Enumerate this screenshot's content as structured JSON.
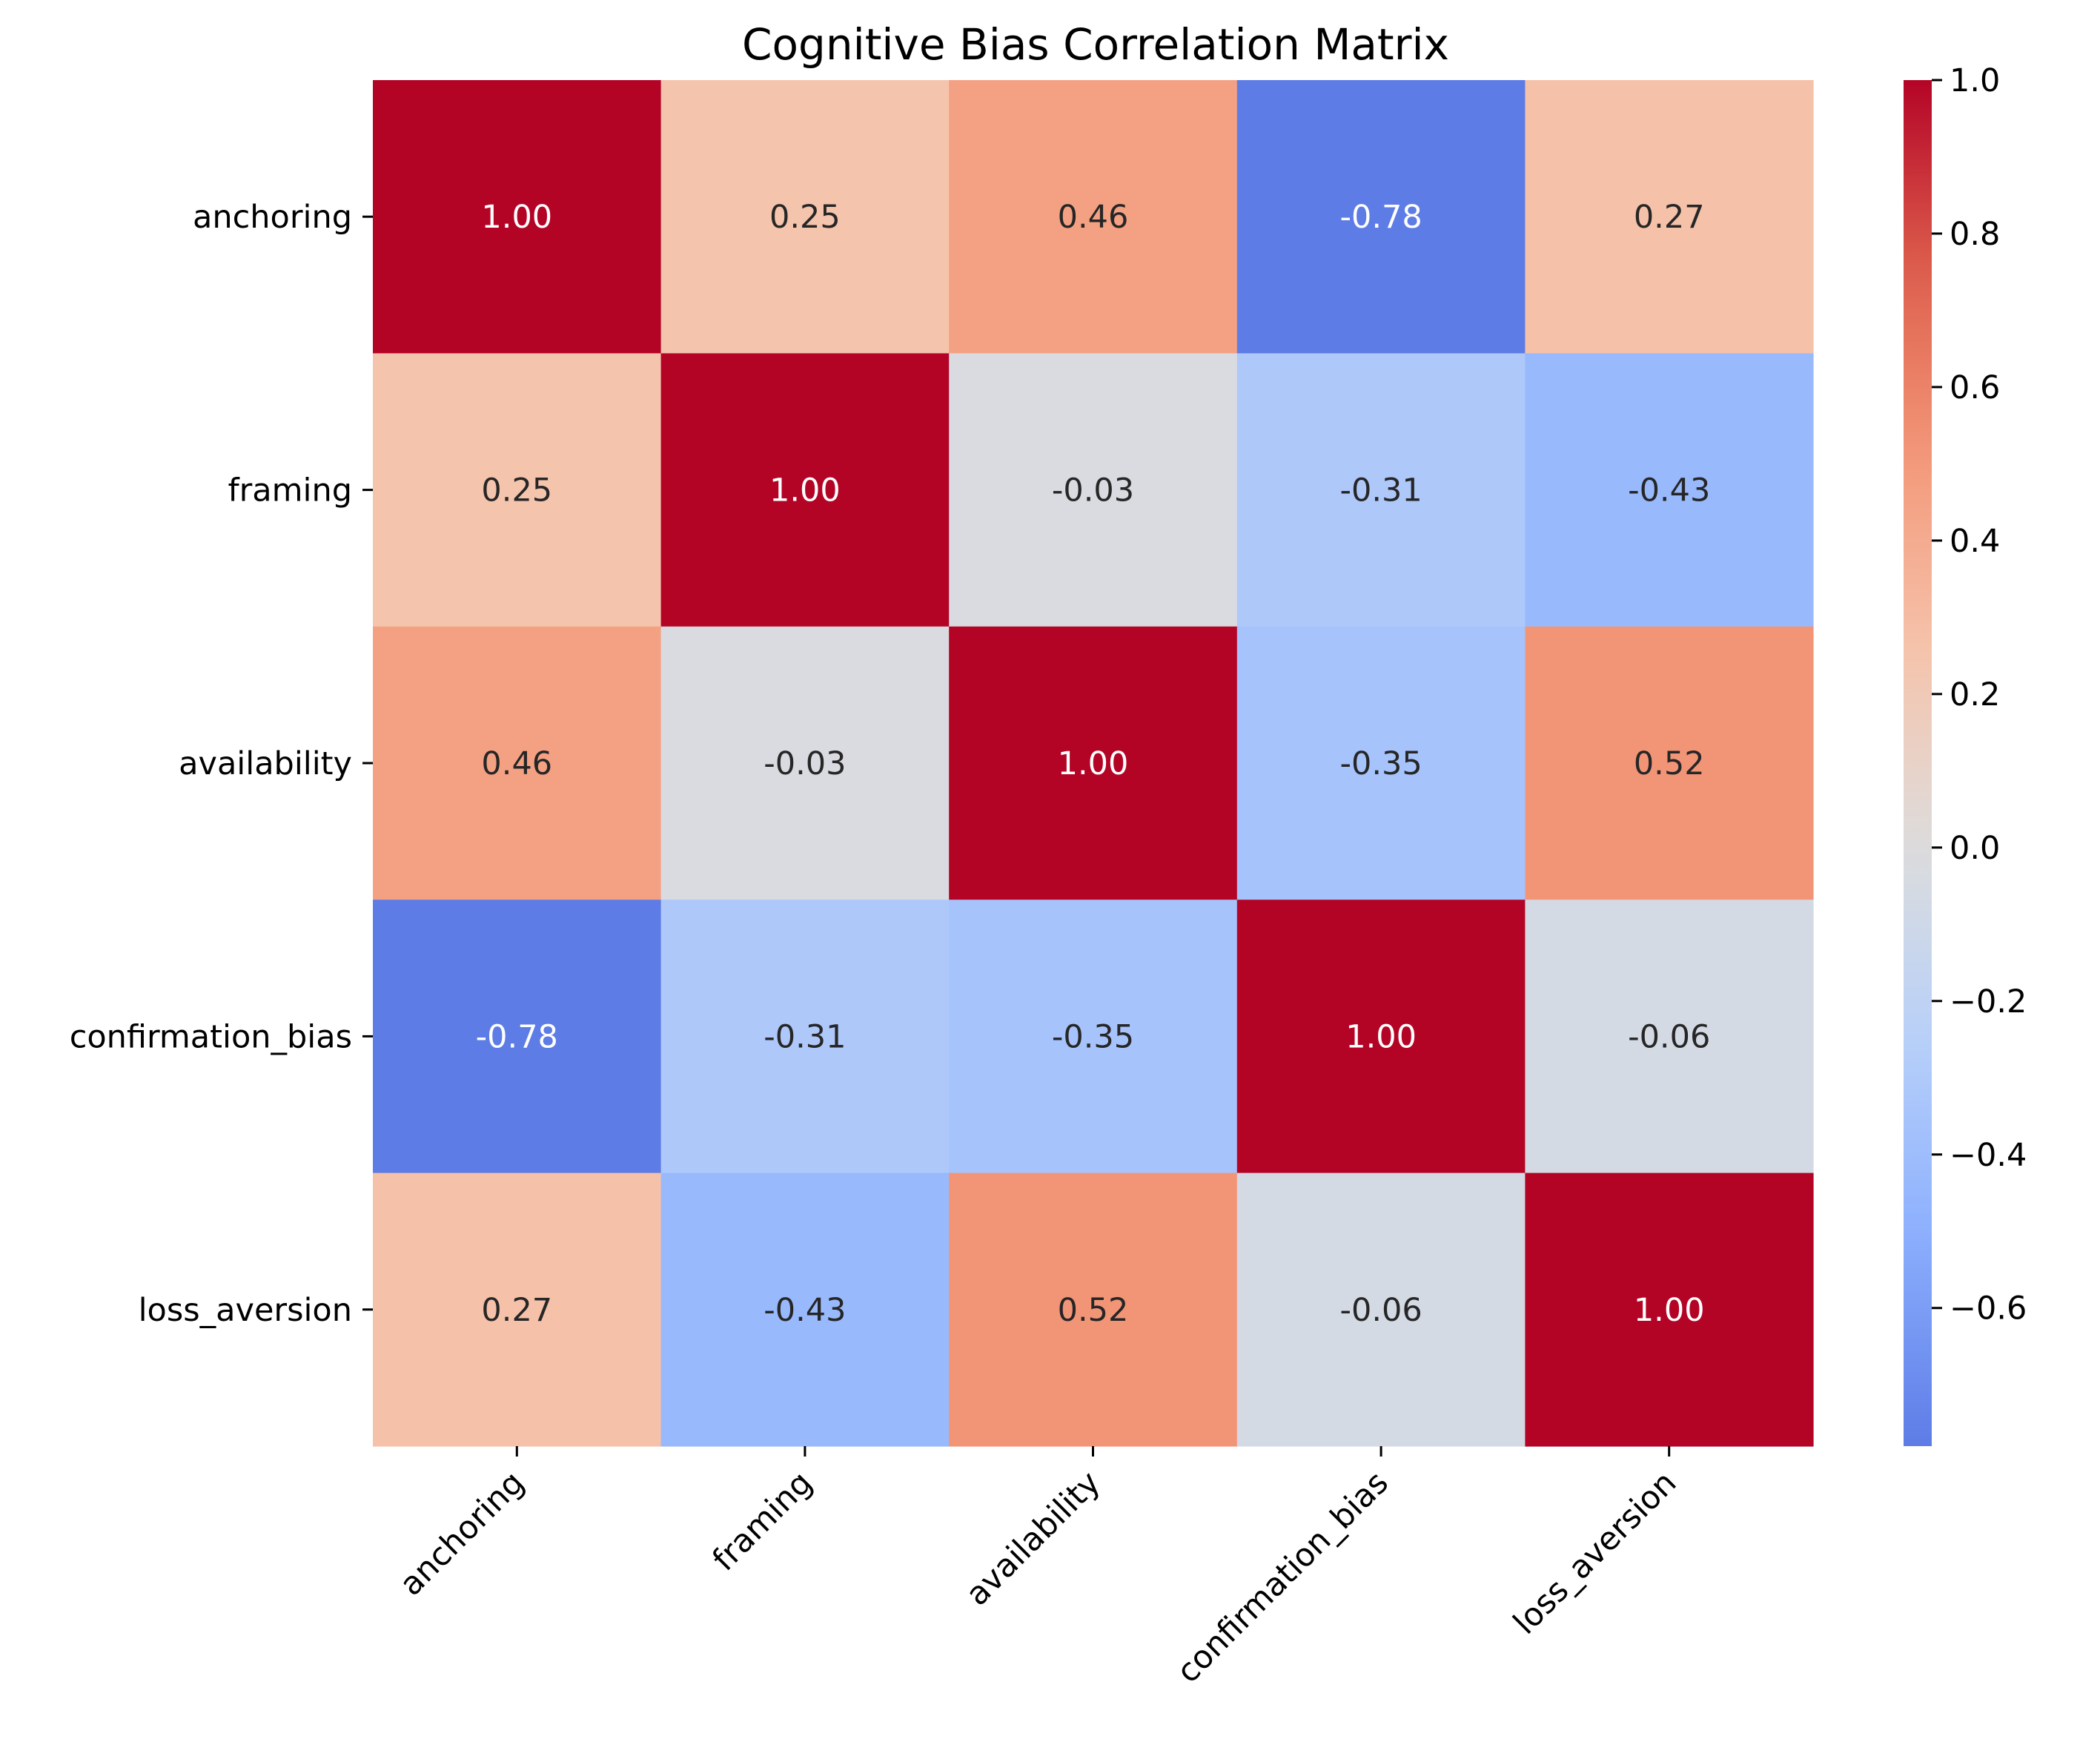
{
  "chart_data": {
    "type": "heatmap",
    "title": "Cognitive Bias Correlation Matrix",
    "x_labels": [
      "anchoring",
      "framing",
      "availability",
      "confirmation_bias",
      "loss_aversion"
    ],
    "y_labels": [
      "anchoring",
      "framing",
      "availability",
      "confirmation_bias",
      "loss_aversion"
    ],
    "values": [
      [
        1.0,
        0.25,
        0.46,
        -0.78,
        0.27
      ],
      [
        0.25,
        1.0,
        -0.03,
        -0.31,
        -0.43
      ],
      [
        0.46,
        -0.03,
        1.0,
        -0.35,
        0.52
      ],
      [
        -0.78,
        -0.31,
        -0.35,
        1.0,
        -0.06
      ],
      [
        0.27,
        -0.43,
        0.52,
        -0.06,
        1.0
      ]
    ],
    "cell_labels": [
      [
        "1.00",
        "0.25",
        "0.46",
        "-0.78",
        "0.27"
      ],
      [
        "0.25",
        "1.00",
        "-0.03",
        "-0.31",
        "-0.43"
      ],
      [
        "0.46",
        "-0.03",
        "1.00",
        "-0.35",
        "0.52"
      ],
      [
        "-0.78",
        "-0.31",
        "-0.35",
        "1.00",
        "-0.06"
      ],
      [
        "0.27",
        "-0.43",
        "0.52",
        "-0.06",
        "1.00"
      ]
    ],
    "colormap": "coolwarm",
    "colorbar": {
      "range": [
        -0.78,
        1.0
      ],
      "ticks": [
        1.0,
        0.8,
        0.6,
        0.4,
        0.2,
        0.0,
        -0.2,
        -0.4,
        -0.6
      ],
      "tick_labels": [
        "1.0",
        "0.8",
        "0.6",
        "0.4",
        "0.2",
        "0.0",
        "−0.2",
        "−0.4",
        "−0.6"
      ]
    },
    "grid": false,
    "legend": "none"
  }
}
